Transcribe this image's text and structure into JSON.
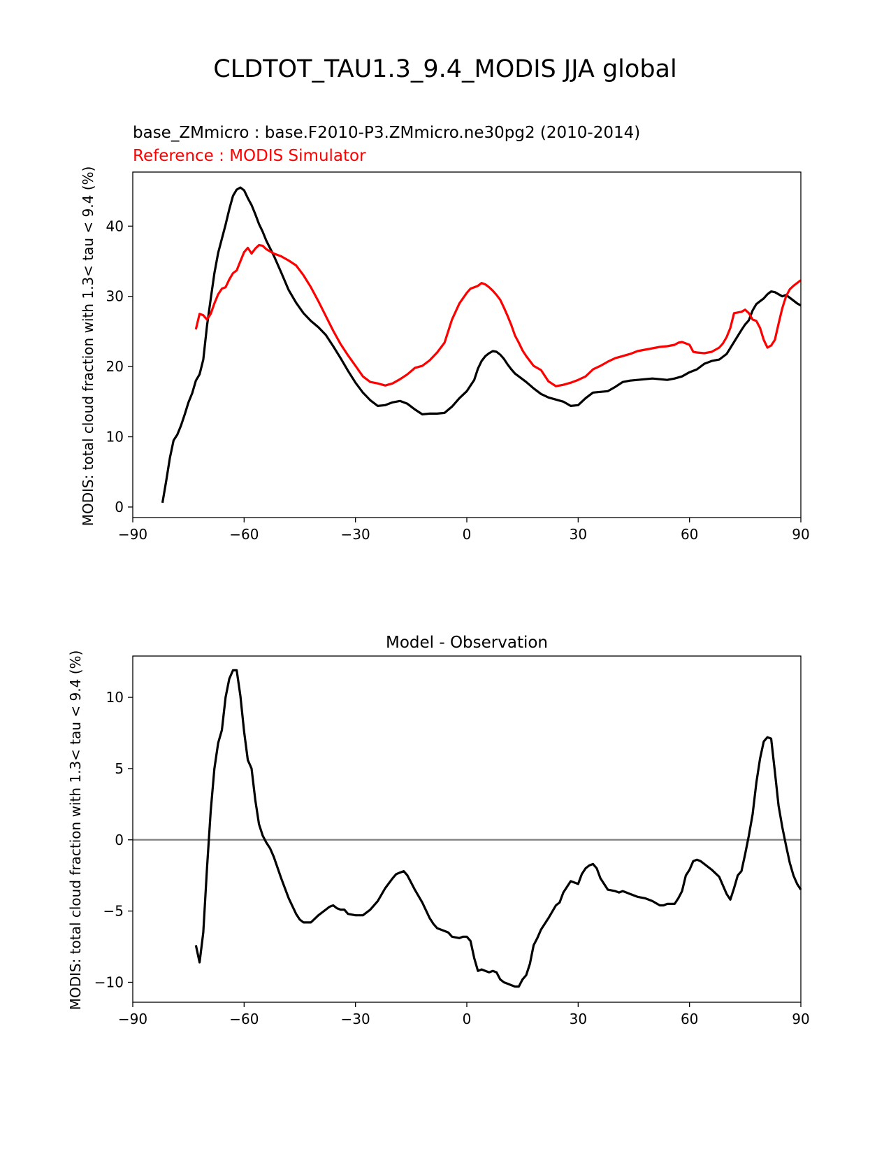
{
  "figure": {
    "title": "CLDTOT_TAU1.3_9.4_MODIS JJA global"
  },
  "chart_data": [
    {
      "type": "line",
      "title_left": "base_ZMmicro : base.F2010-P3.ZMmicro.ne30pg2 (2010-2014)",
      "title_left_2": "Reference : MODIS Simulator",
      "title_center": "",
      "xlabel": "",
      "ylabel": "MODIS: total cloud fraction with 1.3< tau < 9.4 (%)",
      "xlim": [
        -90,
        90
      ],
      "ylim": [
        -1.5,
        47.7
      ],
      "xticks": [
        -90,
        -60,
        -30,
        0,
        30,
        60,
        90
      ],
      "xtick_labels": [
        "−90",
        "−60",
        "−30",
        "0",
        "30",
        "60",
        "90"
      ],
      "yticks": [
        0,
        10,
        20,
        30,
        40
      ],
      "ytick_labels": [
        "0",
        "10",
        "20",
        "30",
        "40"
      ],
      "grid": false,
      "colors": {
        "model": "#000000",
        "reference": "#ff0000"
      },
      "series": [
        {
          "color": "#000000",
          "x": [
            -82,
            -81,
            -80,
            -79,
            -78,
            -77,
            -76,
            -75,
            -74,
            -73,
            -72,
            -71,
            -70,
            -69,
            -68,
            -67,
            -66,
            -65,
            -64,
            -63,
            -62,
            -61,
            -60,
            -59,
            -58,
            -57,
            -56,
            -55,
            -54,
            -52,
            -50,
            -48,
            -46,
            -44,
            -42,
            -40,
            -38,
            -36,
            -34,
            -32,
            -30,
            -28,
            -26,
            -24,
            -22,
            -20,
            -18,
            -16,
            -14,
            -12,
            -10,
            -8,
            -6,
            -4,
            -2,
            0,
            2,
            3,
            4,
            5,
            6,
            7,
            8,
            9,
            10,
            11,
            12,
            13,
            14,
            16,
            18,
            20,
            22,
            24,
            26,
            28,
            30,
            32,
            34,
            36,
            38,
            40,
            42,
            44,
            46,
            48,
            50,
            52,
            54,
            56,
            58,
            60,
            62,
            64,
            66,
            68,
            70,
            72,
            74,
            75,
            76,
            77,
            78,
            79,
            80,
            81,
            82,
            83,
            84,
            85,
            86,
            87,
            88,
            89,
            90
          ],
          "y": [
            0.6,
            3.7,
            7.0,
            9.5,
            10.3,
            11.6,
            13.2,
            14.9,
            16.2,
            18.0,
            18.9,
            21.0,
            25.8,
            29.6,
            33.3,
            36.2,
            38.2,
            40.2,
            42.4,
            44.3,
            45.2,
            45.5,
            45.1,
            44.0,
            43.0,
            41.7,
            40.3,
            39.2,
            37.9,
            35.8,
            33.4,
            30.9,
            29.1,
            27.6,
            26.5,
            25.6,
            24.5,
            22.9,
            21.2,
            19.4,
            17.7,
            16.3,
            15.2,
            14.4,
            14.5,
            14.9,
            15.1,
            14.7,
            13.9,
            13.2,
            13.3,
            13.3,
            13.4,
            14.3,
            15.5,
            16.5,
            18.1,
            19.7,
            20.8,
            21.5,
            21.9,
            22.2,
            22.1,
            21.7,
            21.1,
            20.3,
            19.6,
            19.0,
            18.6,
            17.8,
            16.9,
            16.1,
            15.6,
            15.3,
            15.0,
            14.4,
            14.5,
            15.5,
            16.3,
            16.4,
            16.5,
            17.1,
            17.8,
            18.0,
            18.1,
            18.2,
            18.3,
            18.2,
            18.1,
            18.3,
            18.6,
            19.2,
            19.6,
            20.4,
            20.8,
            21.0,
            21.8,
            23.5,
            25.2,
            26.0,
            26.6,
            28.0,
            28.9,
            29.3,
            29.7,
            30.3,
            30.7,
            30.6,
            30.3,
            30.0,
            30.2,
            29.8,
            29.4,
            29.0,
            28.7
          ]
        },
        {
          "color": "#ff0000",
          "x": [
            -73,
            -72,
            -71,
            -70,
            -69,
            -68,
            -67,
            -66,
            -65,
            -64,
            -63,
            -62,
            -61,
            -60,
            -59,
            -58,
            -57,
            -56,
            -55,
            -54,
            -52,
            -50,
            -48,
            -46,
            -44,
            -42,
            -40,
            -38,
            -36,
            -34,
            -32,
            -30,
            -28,
            -26,
            -24,
            -22,
            -20,
            -18,
            -16,
            -14,
            -12,
            -10,
            -8,
            -6,
            -4,
            -2,
            0,
            1,
            2,
            3,
            4,
            5,
            6,
            7,
            8,
            9,
            10,
            11,
            12,
            13,
            14,
            15,
            16,
            17,
            18,
            20,
            22,
            24,
            26,
            28,
            30,
            32,
            34,
            36,
            38,
            40,
            42,
            44,
            46,
            48,
            50,
            52,
            54,
            56,
            57,
            58,
            59,
            60,
            61,
            62,
            64,
            66,
            68,
            69,
            70,
            71,
            72,
            73,
            74,
            75,
            76,
            77,
            78,
            79,
            80,
            81,
            82,
            83,
            84,
            85,
            86,
            87,
            88,
            89,
            90
          ],
          "y": [
            25.3,
            27.5,
            27.3,
            26.7,
            27.5,
            29.0,
            30.3,
            31.1,
            31.3,
            32.4,
            33.3,
            33.7,
            35.0,
            36.3,
            36.9,
            36.1,
            36.8,
            37.3,
            37.2,
            36.7,
            36.1,
            35.7,
            35.1,
            34.4,
            33.0,
            31.3,
            29.3,
            27.2,
            25.1,
            23.2,
            21.6,
            20.1,
            18.6,
            17.8,
            17.6,
            17.3,
            17.6,
            18.2,
            18.9,
            19.8,
            20.1,
            20.9,
            22.0,
            23.4,
            26.7,
            29.0,
            30.5,
            31.1,
            31.3,
            31.5,
            31.9,
            31.7,
            31.3,
            30.8,
            30.2,
            29.5,
            28.4,
            27.2,
            25.9,
            24.4,
            23.4,
            22.3,
            21.5,
            20.8,
            20.1,
            19.5,
            17.9,
            17.2,
            17.4,
            17.7,
            18.1,
            18.6,
            19.6,
            20.1,
            20.7,
            21.2,
            21.5,
            21.8,
            22.2,
            22.4,
            22.6,
            22.8,
            22.9,
            23.1,
            23.4,
            23.5,
            23.3,
            23.1,
            22.1,
            22.0,
            21.9,
            22.1,
            22.7,
            23.3,
            24.2,
            25.5,
            27.6,
            27.7,
            27.8,
            28.1,
            27.6,
            26.7,
            26.5,
            25.5,
            23.8,
            22.7,
            23.0,
            23.8,
            26.1,
            28.3,
            30.0,
            31.0,
            31.5,
            31.9,
            32.3
          ]
        }
      ]
    },
    {
      "type": "line",
      "title_left": "",
      "title_left_2": "",
      "title_center": "Model - Observation",
      "xlabel": "",
      "ylabel": "MODIS: total cloud fraction with 1.3< tau < 9.4 (%)",
      "xlim": [
        -90,
        90
      ],
      "ylim": [
        -11.4,
        12.9
      ],
      "xticks": [
        -90,
        -60,
        -30,
        0,
        30,
        60,
        90
      ],
      "xtick_labels": [
        "−90",
        "−60",
        "−30",
        "0",
        "30",
        "60",
        "90"
      ],
      "yticks": [
        -10,
        -5,
        0,
        5,
        10
      ],
      "ytick_labels": [
        "−10",
        "−5",
        "0",
        "5",
        "10"
      ],
      "grid": false,
      "zero_line": {
        "y": 0,
        "color": "#808080"
      },
      "colors": {
        "difference": "#000000"
      },
      "series": [
        {
          "color": "#000000",
          "x": [
            -73,
            -72,
            -71,
            -70,
            -69,
            -68,
            -67,
            -66,
            -65,
            -64,
            -63,
            -62,
            -61,
            -60,
            -59,
            -58,
            -57,
            -56,
            -55,
            -54,
            -53,
            -52,
            -50,
            -48,
            -46,
            -45,
            -44,
            -42,
            -40,
            -38,
            -37,
            -36,
            -35,
            -34,
            -33,
            -32,
            -30,
            -28,
            -26,
            -24,
            -22,
            -20,
            -19,
            -18,
            -17,
            -16,
            -15,
            -14,
            -12,
            -10,
            -9,
            -8,
            -7,
            -6,
            -5,
            -4,
            -2,
            -1,
            0,
            1,
            2,
            3,
            4,
            5,
            6,
            7,
            8,
            9,
            10,
            11,
            12,
            13,
            14,
            15,
            16,
            17,
            18,
            19,
            20,
            22,
            24,
            25,
            26,
            28,
            30,
            31,
            32,
            33,
            34,
            35,
            36,
            38,
            40,
            41,
            42,
            43,
            44,
            46,
            48,
            50,
            52,
            53,
            54,
            56,
            57,
            58,
            59,
            60,
            61,
            62,
            63,
            64,
            65,
            66,
            68,
            69,
            70,
            71,
            72,
            73,
            74,
            75,
            76,
            77,
            78,
            79,
            80,
            81,
            82,
            83,
            84,
            85,
            86,
            87,
            88,
            89,
            90
          ],
          "y": [
            -7.4,
            -8.6,
            -6.5,
            -2.0,
            2.0,
            5.0,
            6.8,
            7.7,
            10.0,
            11.3,
            11.9,
            11.9,
            10.1,
            7.6,
            5.6,
            5.0,
            2.8,
            1.1,
            0.3,
            -0.2,
            -0.6,
            -1.2,
            -2.7,
            -4.1,
            -5.2,
            -5.6,
            -5.8,
            -5.8,
            -5.3,
            -4.9,
            -4.7,
            -4.6,
            -4.8,
            -4.9,
            -4.9,
            -5.2,
            -5.3,
            -5.3,
            -4.9,
            -4.3,
            -3.4,
            -2.7,
            -2.4,
            -2.3,
            -2.2,
            -2.5,
            -3.0,
            -3.5,
            -4.4,
            -5.5,
            -5.9,
            -6.2,
            -6.3,
            -6.4,
            -6.5,
            -6.8,
            -6.9,
            -6.8,
            -6.8,
            -7.1,
            -8.3,
            -9.2,
            -9.1,
            -9.2,
            -9.3,
            -9.2,
            -9.3,
            -9.8,
            -10.0,
            -10.1,
            -10.2,
            -10.3,
            -10.3,
            -9.8,
            -9.5,
            -8.7,
            -7.4,
            -6.9,
            -6.3,
            -5.5,
            -4.6,
            -4.4,
            -3.7,
            -2.9,
            -3.1,
            -2.4,
            -2.0,
            -1.8,
            -1.7,
            -2.0,
            -2.7,
            -3.5,
            -3.6,
            -3.7,
            -3.6,
            -3.7,
            -3.8,
            -4.0,
            -4.1,
            -4.3,
            -4.6,
            -4.6,
            -4.5,
            -4.5,
            -4.1,
            -3.6,
            -2.5,
            -2.1,
            -1.5,
            -1.4,
            -1.5,
            -1.7,
            -1.9,
            -2.1,
            -2.6,
            -3.2,
            -3.8,
            -4.2,
            -3.4,
            -2.5,
            -2.2,
            -1.0,
            0.3,
            1.8,
            4.0,
            5.7,
            6.9,
            7.2,
            7.1,
            4.8,
            2.4,
            0.9,
            -0.4,
            -1.6,
            -2.5,
            -3.1,
            -3.5
          ]
        }
      ]
    }
  ]
}
